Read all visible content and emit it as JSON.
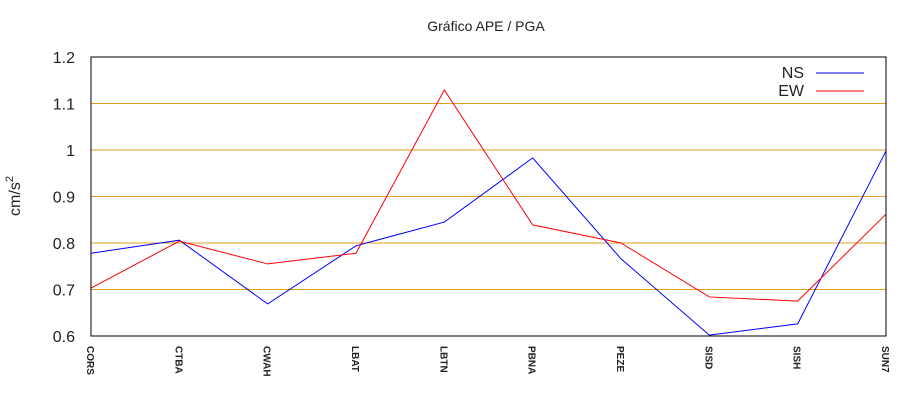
{
  "chart_data": {
    "type": "line",
    "title": "Gráfico  APE / PGA",
    "xlabel": "",
    "ylabel": "cm/s",
    "ylabel_superscript": "2",
    "ylim": [
      0.6,
      1.2
    ],
    "yticks": [
      "0.6",
      "0.7",
      "0.8",
      "0.9",
      "1",
      "1.1",
      "1.2"
    ],
    "grid": true,
    "legend_position": "top-right",
    "categories": [
      "CORS",
      "CTBA",
      "CWAH",
      "LBAT",
      "LBTN",
      "PBNA",
      "PEZE",
      "SISD",
      "SISH",
      "SUN7"
    ],
    "series": [
      {
        "name": "NS",
        "color": "#0000ff",
        "values": [
          0.778,
          0.806,
          0.669,
          0.794,
          0.845,
          0.983,
          0.766,
          0.602,
          0.626,
          0.998
        ]
      },
      {
        "name": "EW",
        "color": "#ff0000",
        "values": [
          0.703,
          0.804,
          0.755,
          0.778,
          1.129,
          0.839,
          0.8,
          0.684,
          0.675,
          0.862
        ]
      }
    ],
    "grid_color": "#e0a020"
  }
}
